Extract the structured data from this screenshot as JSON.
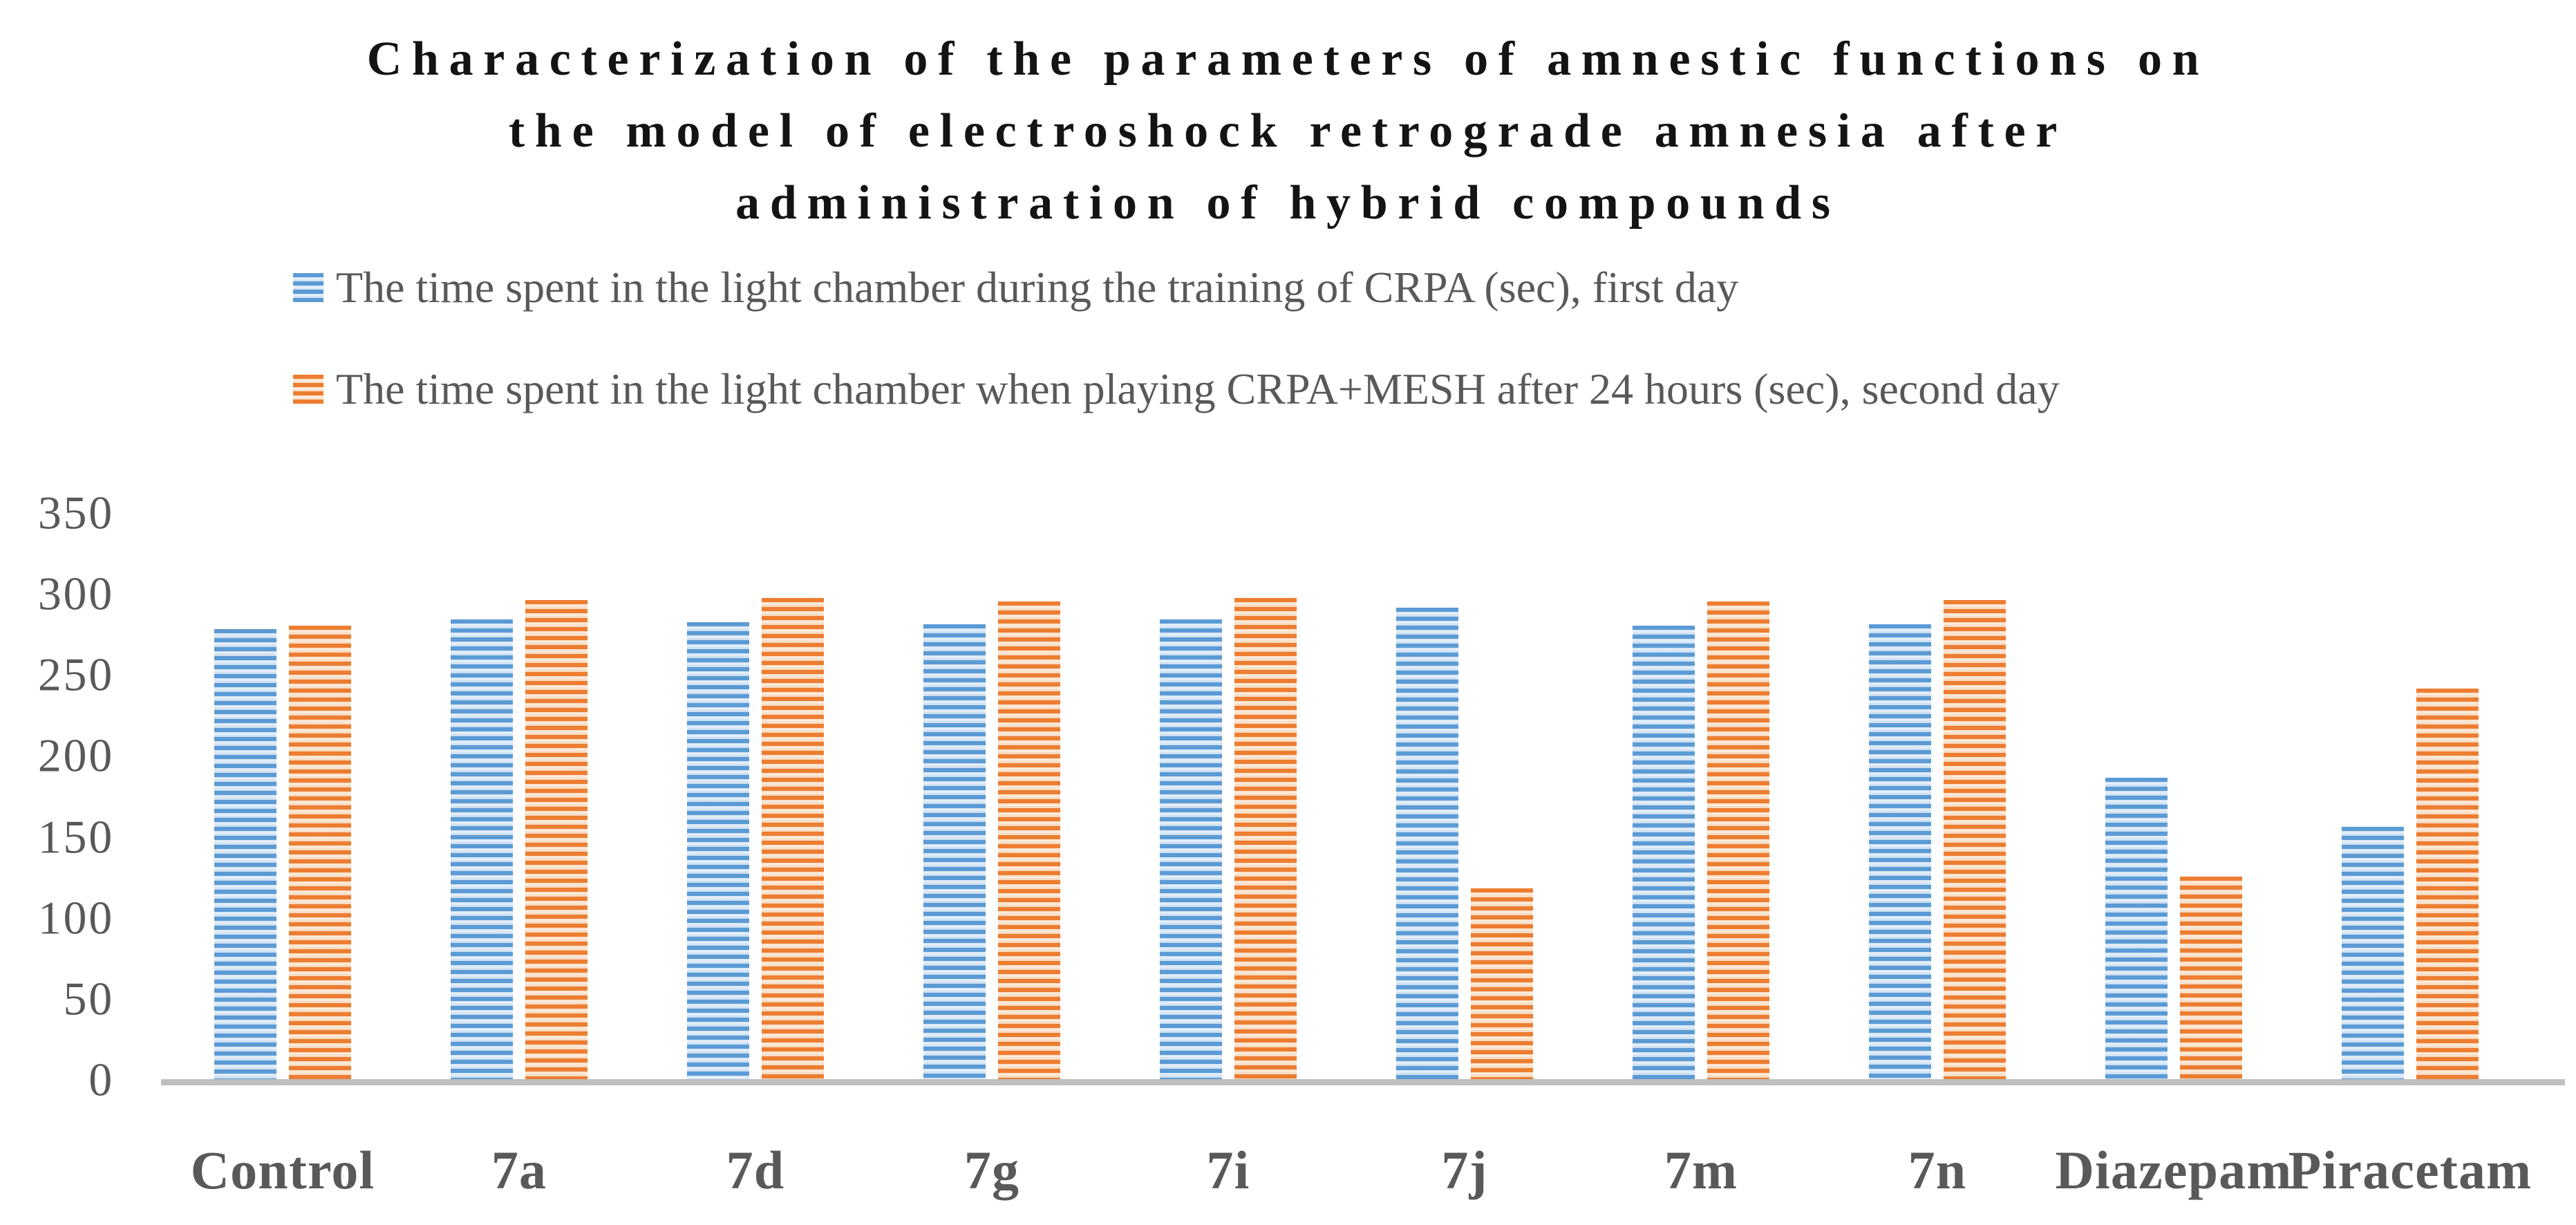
{
  "title": {
    "line1": "Characterization of the parameters of amnestic functions on",
    "line2": "the model of electroshock retrograde amnesia after",
    "line3": "administration of hybrid compounds"
  },
  "legend": {
    "items": [
      {
        "label": "The time spent in the light chamber during the training of CRPA (sec), first day",
        "series": "first-day"
      },
      {
        "label": "The time spent in the light chamber when playing CRPA+MESH after 24 hours (sec), second day",
        "series": "second-day"
      }
    ]
  },
  "colors": {
    "series1": "#5B9BD5",
    "series1_light": "#CDE0F2",
    "series2": "#ED7D31",
    "series2_light": "#F8DBC2",
    "axis_line": "#BFBFBF",
    "text": "#595959",
    "title_text": "#141414"
  },
  "chart_data": {
    "type": "bar",
    "title": "Characterization of the parameters of amnestic functions on the model of electroshock retrograde amnesia after administration of hybrid compounds",
    "categories": [
      "Control",
      "7a",
      "7d",
      "7g",
      "7i",
      "7j",
      "7m",
      "7n",
      "Diazepam",
      "Piracetam"
    ],
    "series": [
      {
        "name": "The time spent in the light chamber during the training of CRPA (sec), first day",
        "color": "#5B9BD5",
        "values": [
          278,
          284,
          282,
          281,
          284,
          291,
          280,
          281,
          186,
          156
        ]
      },
      {
        "name": "The time spent in the light chamber when playing CRPA+MESH after 24 hours (sec), second day",
        "color": "#ED7D31",
        "values": [
          280,
          296,
          297,
          295,
          297,
          118,
          295,
          296,
          125,
          241
        ]
      }
    ],
    "xlabel": "",
    "ylabel": "",
    "ylim": [
      0,
      350
    ],
    "yticks": [
      0,
      50,
      100,
      150,
      200,
      250,
      300,
      350
    ],
    "grid": false,
    "legend_position": "top-left",
    "bar_pattern": "horizontal-stripes"
  }
}
